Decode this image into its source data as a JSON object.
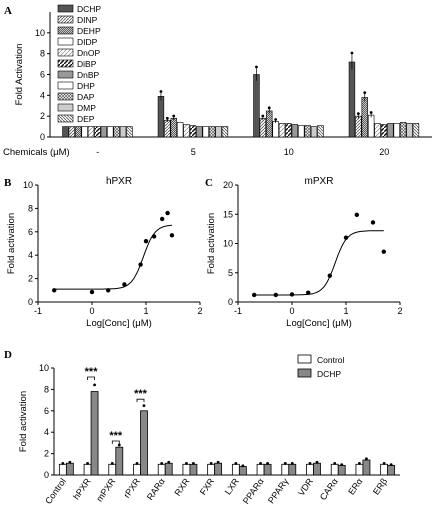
{
  "chart_data": [
    {
      "panel": "A",
      "type": "bar",
      "ylabel": "Fold Activation",
      "xlabel": "Chemicals (μM)",
      "ylim": [
        0,
        12
      ],
      "yticks": [
        0,
        2,
        4,
        6,
        8,
        10
      ],
      "categories": [
        "-",
        "5",
        "10",
        "20"
      ],
      "series": [
        {
          "name": "DCHP",
          "pattern": "solid-dark",
          "values": [
            1.0,
            3.9,
            6.0,
            7.2
          ]
        },
        {
          "name": "DINP",
          "pattern": "diag-fwd",
          "values": [
            1.0,
            1.6,
            1.8,
            2.0
          ]
        },
        {
          "name": "DEHP",
          "pattern": "diag-dense",
          "values": [
            1.0,
            1.8,
            2.5,
            3.8
          ]
        },
        {
          "name": "DIDP",
          "pattern": "white",
          "values": [
            1.0,
            1.4,
            1.5,
            2.1
          ]
        },
        {
          "name": "DnOP",
          "pattern": "diag-light",
          "values": [
            1.0,
            1.2,
            1.3,
            1.3
          ]
        },
        {
          "name": "DiBP",
          "pattern": "diag-bold",
          "values": [
            1.0,
            1.1,
            1.3,
            1.2
          ]
        },
        {
          "name": "DnBP",
          "pattern": "grey",
          "values": [
            1.0,
            1.0,
            1.2,
            1.3
          ]
        },
        {
          "name": "DHP",
          "pattern": "white",
          "values": [
            1.0,
            1.0,
            1.1,
            1.3
          ]
        },
        {
          "name": "DAP",
          "pattern": "crosshatch",
          "values": [
            1.0,
            1.0,
            1.1,
            1.4
          ]
        },
        {
          "name": "DMP",
          "pattern": "light-grey",
          "values": [
            1.0,
            1.0,
            1.0,
            1.3
          ]
        },
        {
          "name": "DEP",
          "pattern": "diag-back",
          "values": [
            1.0,
            1.0,
            1.1,
            1.3
          ]
        }
      ]
    },
    {
      "panel": "B",
      "type": "scatter",
      "title": "hPXR",
      "xlabel": "Log[Conc] (μM)",
      "ylabel": "Fold activation",
      "xlim": [
        -1,
        2
      ],
      "ylim": [
        0,
        10
      ],
      "xticks": [
        -1,
        0,
        1,
        2
      ],
      "yticks": [
        0,
        2,
        4,
        6,
        8,
        10
      ],
      "points": {
        "x": [
          -0.7,
          0.0,
          0.3,
          0.6,
          0.9,
          1.0,
          1.15,
          1.3,
          1.4,
          1.48
        ],
        "y": [
          1.0,
          0.85,
          1.0,
          1.5,
          3.2,
          5.2,
          5.6,
          7.1,
          7.6,
          5.7
        ]
      },
      "fit": {
        "bottom": 1.1,
        "top": 6.6,
        "logEC50": 0.95,
        "hill": 4
      }
    },
    {
      "panel": "C",
      "type": "scatter",
      "title": "mPXR",
      "xlabel": "Log[Conc] (μM)",
      "ylabel": "Fold activation",
      "xlim": [
        -1,
        2
      ],
      "ylim": [
        0,
        20
      ],
      "xticks": [
        -1,
        0,
        1,
        2
      ],
      "yticks": [
        0,
        5,
        10,
        15,
        20
      ],
      "points": {
        "x": [
          -0.7,
          -0.3,
          0.0,
          0.3,
          0.7,
          1.0,
          1.2,
          1.5,
          1.7
        ],
        "y": [
          1.2,
          1.2,
          1.3,
          1.6,
          4.5,
          11.0,
          14.9,
          13.6,
          8.6
        ]
      },
      "fit": {
        "bottom": 1.2,
        "top": 12.2,
        "logEC50": 0.8,
        "hill": 4
      }
    },
    {
      "panel": "D",
      "type": "bar",
      "ylabel": "Fold activation",
      "ylim": [
        0,
        10
      ],
      "yticks": [
        0,
        2,
        4,
        6,
        8,
        10
      ],
      "categories": [
        "Control",
        "hPXR",
        "mPXR",
        "rPXR",
        "RARα",
        "RXR",
        "FXR",
        "LXR",
        "PPARα",
        "PPARγ",
        "VDR",
        "CARα",
        "ERα",
        "ERβ"
      ],
      "series": [
        {
          "name": "Control",
          "values": [
            1.0,
            1.0,
            1.0,
            1.0,
            1.0,
            1.0,
            1.0,
            1.0,
            1.0,
            1.0,
            1.0,
            1.0,
            1.0,
            1.0
          ]
        },
        {
          "name": "DCHP",
          "values": [
            1.1,
            7.8,
            2.6,
            6.0,
            1.1,
            1.0,
            1.1,
            0.8,
            1.0,
            1.0,
            1.1,
            0.9,
            1.4,
            0.9
          ]
        }
      ],
      "significance": [
        {
          "category": "hPXR",
          "label": "***"
        },
        {
          "category": "mPXR",
          "label": "***"
        },
        {
          "category": "rPXR",
          "label": "***"
        }
      ]
    }
  ],
  "labels": {
    "panelA": "A",
    "panelB": "B",
    "panelC": "C",
    "panelD": "D",
    "chemicals_label": "Chemicals (μM)"
  }
}
